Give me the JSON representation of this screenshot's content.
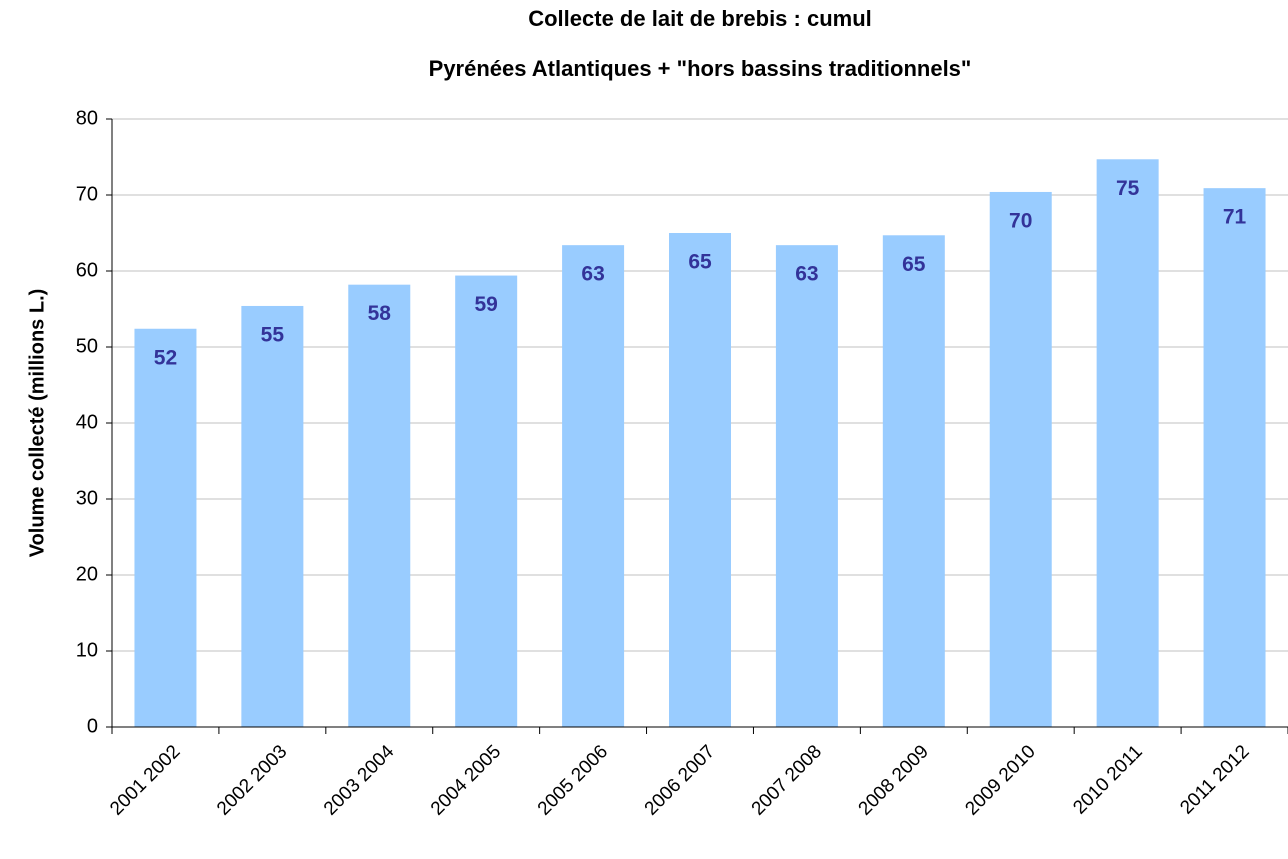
{
  "chart_data": {
    "type": "bar",
    "title": "Collecte de lait de brebis : cumul",
    "subtitle": "Pyrénées Atlantiques + \"hors bassins traditionnels\"",
    "y_label": "Volume collecté (millions L.)",
    "categories": [
      "2001 2002",
      "2002 2003",
      "2003 2004",
      "2004 2005",
      "2005 2006",
      "2006 2007",
      "2007 2008",
      "2008 2009",
      "2009 2010",
      "2010 2011",
      "2011 2012"
    ],
    "values": [
      52.4,
      55.4,
      58.2,
      59.4,
      63.4,
      65.0,
      63.4,
      64.7,
      70.4,
      74.7,
      70.9
    ],
    "value_labels": [
      "52",
      "55",
      "58",
      "59",
      "63",
      "65",
      "63",
      "65",
      "70",
      "75",
      "71"
    ],
    "color": "#99ccff",
    "label_color": "#333399",
    "ylim": [
      0,
      80
    ],
    "yticks": [
      0,
      10,
      20,
      30,
      40,
      50,
      60,
      70,
      80
    ],
    "grid": true
  }
}
